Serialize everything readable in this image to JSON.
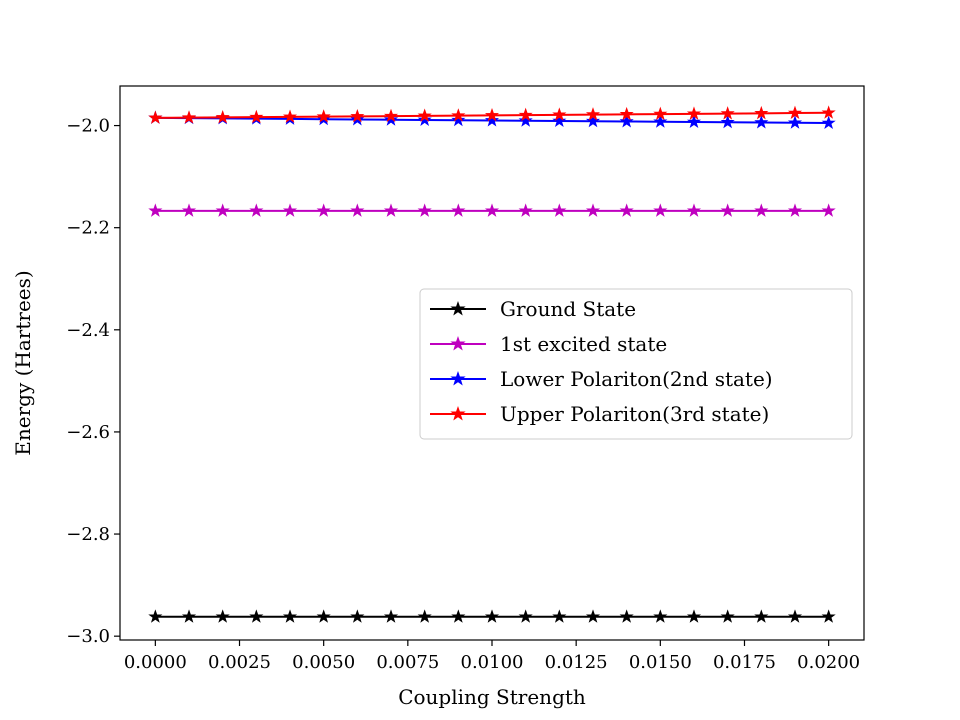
{
  "chart_data": {
    "type": "line",
    "title": "",
    "xlabel": "Coupling Strength",
    "ylabel": "Energy (Hartrees)",
    "xlim": [
      -0.00105,
      0.02105
    ],
    "ylim": [
      -3.0075,
      -1.9225
    ],
    "xticks": [
      0.0,
      0.0025,
      0.005,
      0.0075,
      0.01,
      0.0125,
      0.015,
      0.0175,
      0.02
    ],
    "xtick_labels": [
      "0.0000",
      "0.0025",
      "0.0050",
      "0.0075",
      "0.0100",
      "0.0125",
      "0.0150",
      "0.0175",
      "0.0200"
    ],
    "yticks": [
      -3.0,
      -2.8,
      -2.6,
      -2.4,
      -2.2,
      -2.0
    ],
    "ytick_labels": [
      "−3.0",
      "−2.8",
      "−2.6",
      "−2.4",
      "−2.2",
      "−2.0"
    ],
    "grid": false,
    "legend_position": "center-right",
    "x": [
      0.0,
      0.001,
      0.002,
      0.003,
      0.004,
      0.005,
      0.006,
      0.007,
      0.008,
      0.009,
      0.01,
      0.011,
      0.012,
      0.013,
      0.014,
      0.015,
      0.016,
      0.017,
      0.018,
      0.019,
      0.02
    ],
    "series": [
      {
        "name": "Ground State",
        "color": "#000000",
        "marker": "star",
        "values": [
          -2.962,
          -2.962,
          -2.962,
          -2.962,
          -2.962,
          -2.962,
          -2.962,
          -2.962,
          -2.962,
          -2.962,
          -2.962,
          -2.962,
          -2.962,
          -2.962,
          -2.962,
          -2.962,
          -2.962,
          -2.962,
          -2.962,
          -2.962,
          -2.962
        ]
      },
      {
        "name": "1st excited state",
        "color": "#bf00bf",
        "marker": "star",
        "values": [
          -2.167,
          -2.167,
          -2.167,
          -2.167,
          -2.167,
          -2.167,
          -2.167,
          -2.167,
          -2.167,
          -2.167,
          -2.167,
          -2.167,
          -2.167,
          -2.167,
          -2.167,
          -2.167,
          -2.167,
          -2.167,
          -2.167,
          -2.167,
          -2.167
        ]
      },
      {
        "name": "Lower Polariton(2nd state)",
        "color": "#0000ff",
        "marker": "star",
        "values": [
          -1.985,
          -1.9855,
          -1.986,
          -1.9865,
          -1.987,
          -1.9875,
          -1.988,
          -1.9885,
          -1.989,
          -1.9895,
          -1.99,
          -1.9905,
          -1.991,
          -1.9915,
          -1.992,
          -1.9925,
          -1.993,
          -1.9935,
          -1.994,
          -1.9945,
          -1.995
        ]
      },
      {
        "name": "Upper Polariton(3rd state)",
        "color": "#ff0000",
        "marker": "star",
        "values": [
          -1.985,
          -1.9845,
          -1.984,
          -1.9835,
          -1.983,
          -1.9825,
          -1.982,
          -1.9815,
          -1.981,
          -1.9805,
          -1.98,
          -1.9795,
          -1.979,
          -1.9785,
          -1.978,
          -1.9775,
          -1.977,
          -1.9765,
          -1.976,
          -1.9755,
          -1.975
        ]
      }
    ]
  }
}
